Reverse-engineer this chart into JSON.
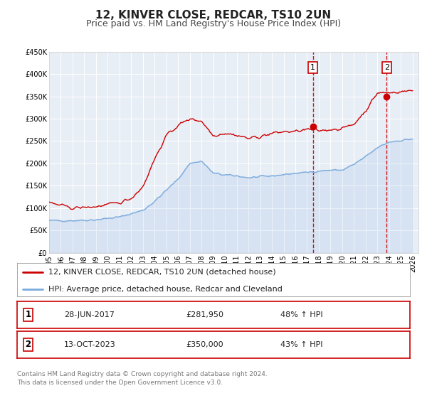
{
  "title": "12, KINVER CLOSE, REDCAR, TS10 2UN",
  "subtitle": "Price paid vs. HM Land Registry's House Price Index (HPI)",
  "ylim": [
    0,
    450000
  ],
  "xlim_start": 1995.0,
  "xlim_end": 2026.5,
  "yticks": [
    0,
    50000,
    100000,
    150000,
    200000,
    250000,
    300000,
    350000,
    400000,
    450000
  ],
  "ytick_labels": [
    "£0",
    "£50K",
    "£100K",
    "£150K",
    "£200K",
    "£250K",
    "£300K",
    "£350K",
    "£400K",
    "£450K"
  ],
  "xticks": [
    1995,
    1996,
    1997,
    1998,
    1999,
    2000,
    2001,
    2002,
    2003,
    2004,
    2005,
    2006,
    2007,
    2008,
    2009,
    2010,
    2011,
    2012,
    2013,
    2014,
    2015,
    2016,
    2017,
    2018,
    2019,
    2020,
    2021,
    2022,
    2023,
    2024,
    2025,
    2026
  ],
  "red_line_color": "#cc0000",
  "blue_line_color": "#7aaadd",
  "background_color": "#ffffff",
  "plot_bg_color": "#e8eef6",
  "grid_color": "#ffffff",
  "dashed_line_color": "#cc0000",
  "marker1_x": 2017.49,
  "marker1_y": 281950,
  "marker2_x": 2023.79,
  "marker2_y": 350000,
  "legend_red_label": "12, KINVER CLOSE, REDCAR, TS10 2UN (detached house)",
  "legend_blue_label": "HPI: Average price, detached house, Redcar and Cleveland",
  "sale1_label": "1",
  "sale1_date": "28-JUN-2017",
  "sale1_price": "£281,950",
  "sale1_hpi": "48% ↑ HPI",
  "sale2_label": "2",
  "sale2_date": "13-OCT-2023",
  "sale2_price": "£350,000",
  "sale2_hpi": "43% ↑ HPI",
  "footer1": "Contains HM Land Registry data © Crown copyright and database right 2024.",
  "footer2": "This data is licensed under the Open Government Licence v3.0.",
  "title_fontsize": 11,
  "subtitle_fontsize": 9,
  "tick_fontsize": 7,
  "legend_fontsize": 8,
  "table_fontsize": 8,
  "footer_fontsize": 6.5,
  "hpi_base": [
    1995,
    1997,
    1999,
    2001,
    2003,
    2004,
    2005,
    2006,
    2007,
    2008,
    2009,
    2010,
    2011,
    2012,
    2013,
    2014,
    2015,
    2016,
    2017,
    2018,
    2019,
    2020,
    2021,
    2022,
    2023,
    2024,
    2026
  ],
  "hpi_vals": [
    72000,
    72000,
    74000,
    80000,
    95000,
    115000,
    140000,
    165000,
    200000,
    205000,
    178000,
    174000,
    172000,
    168000,
    170000,
    172000,
    175000,
    178000,
    180000,
    183000,
    185000,
    185000,
    198000,
    215000,
    235000,
    248000,
    255000
  ],
  "red_base": [
    1995,
    1997,
    1999,
    2001,
    2002,
    2003,
    2004,
    2005,
    2006,
    2007,
    2008,
    2009,
    2010,
    2011,
    2012,
    2013,
    2014,
    2015,
    2016,
    2017,
    2018,
    2019,
    2020,
    2021,
    2022,
    2023,
    2024,
    2026
  ],
  "red_vals": [
    112000,
    100000,
    103000,
    112000,
    122000,
    148000,
    210000,
    262000,
    285000,
    300000,
    295000,
    262000,
    268000,
    263000,
    256000,
    260000,
    267000,
    271000,
    271000,
    276000,
    273000,
    276000,
    278000,
    288000,
    318000,
    358000,
    358000,
    363000
  ]
}
